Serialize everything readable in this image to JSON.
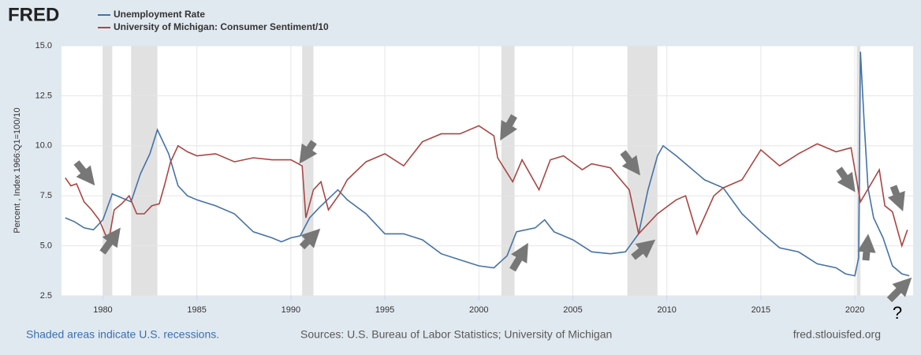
{
  "chart_data": {
    "type": "line",
    "logo": "FRED",
    "ylabel": "Percent , Index 1966:Q1=100/10",
    "note": "Shaded areas indicate U.S. recessions.",
    "source": "Sources: U.S. Bureau of Labor Statistics; University of Michigan",
    "site": "fred.stlouisfed.org",
    "annotation": "?",
    "xlim": [
      1977.8,
      2023.1
    ],
    "xticks": [
      1980,
      1985,
      1990,
      1995,
      2000,
      2005,
      2010,
      2015,
      2020
    ],
    "ylim": [
      2.5,
      15
    ],
    "yticks": [
      {
        "value": 2.5,
        "label": "2.5"
      },
      {
        "value": 5,
        "label": "5.0"
      },
      {
        "value": 7.5,
        "label": "7.5"
      },
      {
        "value": 10,
        "label": "10.0"
      },
      {
        "value": 12.5,
        "label": "12.5"
      },
      {
        "value": 15,
        "label": "15.0"
      }
    ],
    "grid": true,
    "recession_color": "#e1e1e1",
    "recessions": [
      [
        1980.0,
        1980.5
      ],
      [
        1981.5,
        1982.9
      ],
      [
        1990.6,
        1991.2
      ],
      [
        2001.2,
        2001.9
      ],
      [
        2007.9,
        2009.5
      ],
      [
        2020.1,
        2020.3
      ]
    ],
    "series": [
      {
        "name": "Unemployment Rate",
        "color": "#4572a7",
        "x": [
          1978.0,
          1978.5,
          1979.0,
          1979.5,
          1980.0,
          1980.5,
          1981.0,
          1981.5,
          1982.0,
          1982.5,
          1982.9,
          1983.5,
          1984.0,
          1984.5,
          1985.0,
          1986.0,
          1987.0,
          1988.0,
          1989.0,
          1989.5,
          1990.0,
          1990.5,
          1991.0,
          1991.5,
          1992.5,
          1993.0,
          1994.0,
          1995.0,
          1996.0,
          1997.0,
          1998.0,
          1999.0,
          2000.0,
          2000.8,
          2001.5,
          2002.0,
          2003.0,
          2003.5,
          2004.0,
          2005.0,
          2006.0,
          2007.0,
          2007.8,
          2008.5,
          2009.0,
          2009.5,
          2009.8,
          2010.5,
          2011.0,
          2012.0,
          2013.0,
          2014.0,
          2015.0,
          2016.0,
          2017.0,
          2018.0,
          2019.0,
          2019.5,
          2020.0,
          2020.2,
          2020.3,
          2020.5,
          2020.7,
          2021.0,
          2021.5,
          2022.0,
          2022.5,
          2022.9
        ],
        "values": [
          6.4,
          6.2,
          5.9,
          5.8,
          6.3,
          7.6,
          7.4,
          7.2,
          8.6,
          9.6,
          10.8,
          9.6,
          8.0,
          7.5,
          7.3,
          7.0,
          6.6,
          5.7,
          5.4,
          5.2,
          5.4,
          5.5,
          6.4,
          6.9,
          7.8,
          7.3,
          6.6,
          5.6,
          5.6,
          5.3,
          4.6,
          4.3,
          4.0,
          3.9,
          4.5,
          5.7,
          5.9,
          6.3,
          5.7,
          5.3,
          4.7,
          4.6,
          4.7,
          5.6,
          7.8,
          9.5,
          10.0,
          9.5,
          9.1,
          8.3,
          7.9,
          6.6,
          5.7,
          4.9,
          4.7,
          4.1,
          3.9,
          3.6,
          3.5,
          4.4,
          14.7,
          11.1,
          7.9,
          6.4,
          5.4,
          4.0,
          3.6,
          3.5
        ]
      },
      {
        "name": "University of Michigan: Consumer Sentiment/10",
        "color": "#aa4643",
        "x": [
          1978.0,
          1978.3,
          1978.6,
          1979.0,
          1979.4,
          1979.8,
          1980.3,
          1980.6,
          1981.0,
          1981.4,
          1981.8,
          1982.2,
          1982.6,
          1983.0,
          1983.3,
          1983.6,
          1984.0,
          1984.5,
          1985.0,
          1986.0,
          1987.0,
          1988.0,
          1989.0,
          1990.0,
          1990.6,
          1990.8,
          1991.2,
          1991.6,
          1992.0,
          1992.6,
          1993.0,
          1994.0,
          1995.0,
          1996.0,
          1997.0,
          1998.0,
          1999.0,
          2000.0,
          2000.8,
          2001.0,
          2001.8,
          2002.3,
          2003.2,
          2003.8,
          2004.5,
          2005.5,
          2006.0,
          2007.0,
          2008.0,
          2008.5,
          2009.0,
          2009.5,
          2010.5,
          2011.0,
          2011.6,
          2012.5,
          2013.0,
          2014.0,
          2015.0,
          2016.0,
          2017.0,
          2018.0,
          2019.0,
          2019.8,
          2020.3,
          2020.8,
          2021.3,
          2021.6,
          2022.0,
          2022.5,
          2022.8
        ],
        "values": [
          8.4,
          8.0,
          8.1,
          7.2,
          6.8,
          6.3,
          5.2,
          6.8,
          7.1,
          7.5,
          6.6,
          6.6,
          7.0,
          7.1,
          8.1,
          9.2,
          10.0,
          9.7,
          9.5,
          9.6,
          9.2,
          9.4,
          9.3,
          9.3,
          9.0,
          6.4,
          7.8,
          8.2,
          6.8,
          7.6,
          8.3,
          9.2,
          9.6,
          9.0,
          10.2,
          10.6,
          10.6,
          11.0,
          10.5,
          9.4,
          8.2,
          9.3,
          7.8,
          9.3,
          9.5,
          8.8,
          9.1,
          8.9,
          7.8,
          5.6,
          6.1,
          6.6,
          7.3,
          7.5,
          5.6,
          7.5,
          7.9,
          8.3,
          9.8,
          9.0,
          9.6,
          10.1,
          9.7,
          9.9,
          7.2,
          8.0,
          8.8,
          7.0,
          6.7,
          5.0,
          5.8
        ]
      }
    ]
  }
}
